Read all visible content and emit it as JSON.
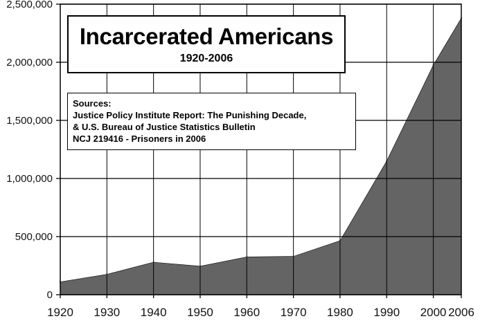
{
  "chart_data": {
    "type": "area",
    "title": "Incarcerated Americans",
    "subtitle": "1920-2006",
    "annotation": {
      "heading": "Sources:",
      "lines": [
        "Justice Policy Institute Report: The Punishing Decade,",
        "& U.S. Bureau of Justice Statistics Bulletin",
        "NCJ 219416 - Prisoners in 2006"
      ]
    },
    "x": [
      1920,
      1930,
      1940,
      1950,
      1960,
      1970,
      1980,
      1990,
      2000,
      2006
    ],
    "x_tick_labels": [
      "1920",
      "1930",
      "1940",
      "1950",
      "1960",
      "1970",
      "1980",
      "1990",
      "2000",
      "2006"
    ],
    "y_tick_values": [
      0,
      500000,
      1000000,
      1500000,
      2000000,
      2500000
    ],
    "y_tick_labels": [
      "0",
      "500,000",
      "1,000,000",
      "1,500,000",
      "2,000,000",
      "2,500,000"
    ],
    "ylim": [
      0,
      2500000
    ],
    "series": [
      {
        "values": [
          110000,
          175000,
          280000,
          245000,
          325000,
          330000,
          465000,
          1150000,
          1975000,
          2380000
        ]
      }
    ],
    "grid": true,
    "colors": {
      "area": "#646464",
      "grid": "#000000",
      "background": "#ffffff"
    }
  }
}
